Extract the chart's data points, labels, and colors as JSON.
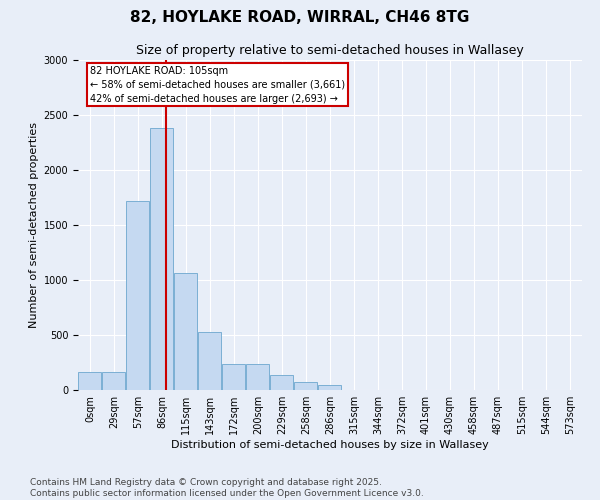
{
  "title_line1": "82, HOYLAKE ROAD, WIRRAL, CH46 8TG",
  "title_line2": "Size of property relative to semi-detached houses in Wallasey",
  "xlabel": "Distribution of semi-detached houses by size in Wallasey",
  "ylabel": "Number of semi-detached properties",
  "bin_labels": [
    "0sqm",
    "29sqm",
    "57sqm",
    "86sqm",
    "115sqm",
    "143sqm",
    "172sqm",
    "200sqm",
    "229sqm",
    "258sqm",
    "286sqm",
    "315sqm",
    "344sqm",
    "372sqm",
    "401sqm",
    "430sqm",
    "458sqm",
    "487sqm",
    "515sqm",
    "544sqm",
    "573sqm"
  ],
  "bar_values": [
    160,
    160,
    1720,
    2380,
    1060,
    530,
    240,
    240,
    140,
    70,
    50,
    0,
    0,
    0,
    0,
    0,
    0,
    0,
    0,
    0,
    0
  ],
  "bar_color": "#c5d9f1",
  "bar_edge_color": "#7bafd4",
  "property_line_x": 4,
  "annotation_text": "82 HOYLAKE ROAD: 105sqm\n← 58% of semi-detached houses are smaller (3,661)\n42% of semi-detached houses are larger (2,693) →",
  "annotation_box_color": "#ffffff",
  "annotation_box_edge": "#cc0000",
  "vline_color": "#cc0000",
  "ylim": [
    0,
    3000
  ],
  "footnote_line1": "Contains HM Land Registry data © Crown copyright and database right 2025.",
  "footnote_line2": "Contains public sector information licensed under the Open Government Licence v3.0.",
  "bg_color": "#e8eef8",
  "plot_bg_color": "#e8eef8",
  "grid_color": "#ffffff",
  "title_fontsize": 11,
  "subtitle_fontsize": 9,
  "axis_label_fontsize": 8,
  "tick_fontsize": 7,
  "footnote_fontsize": 6.5
}
